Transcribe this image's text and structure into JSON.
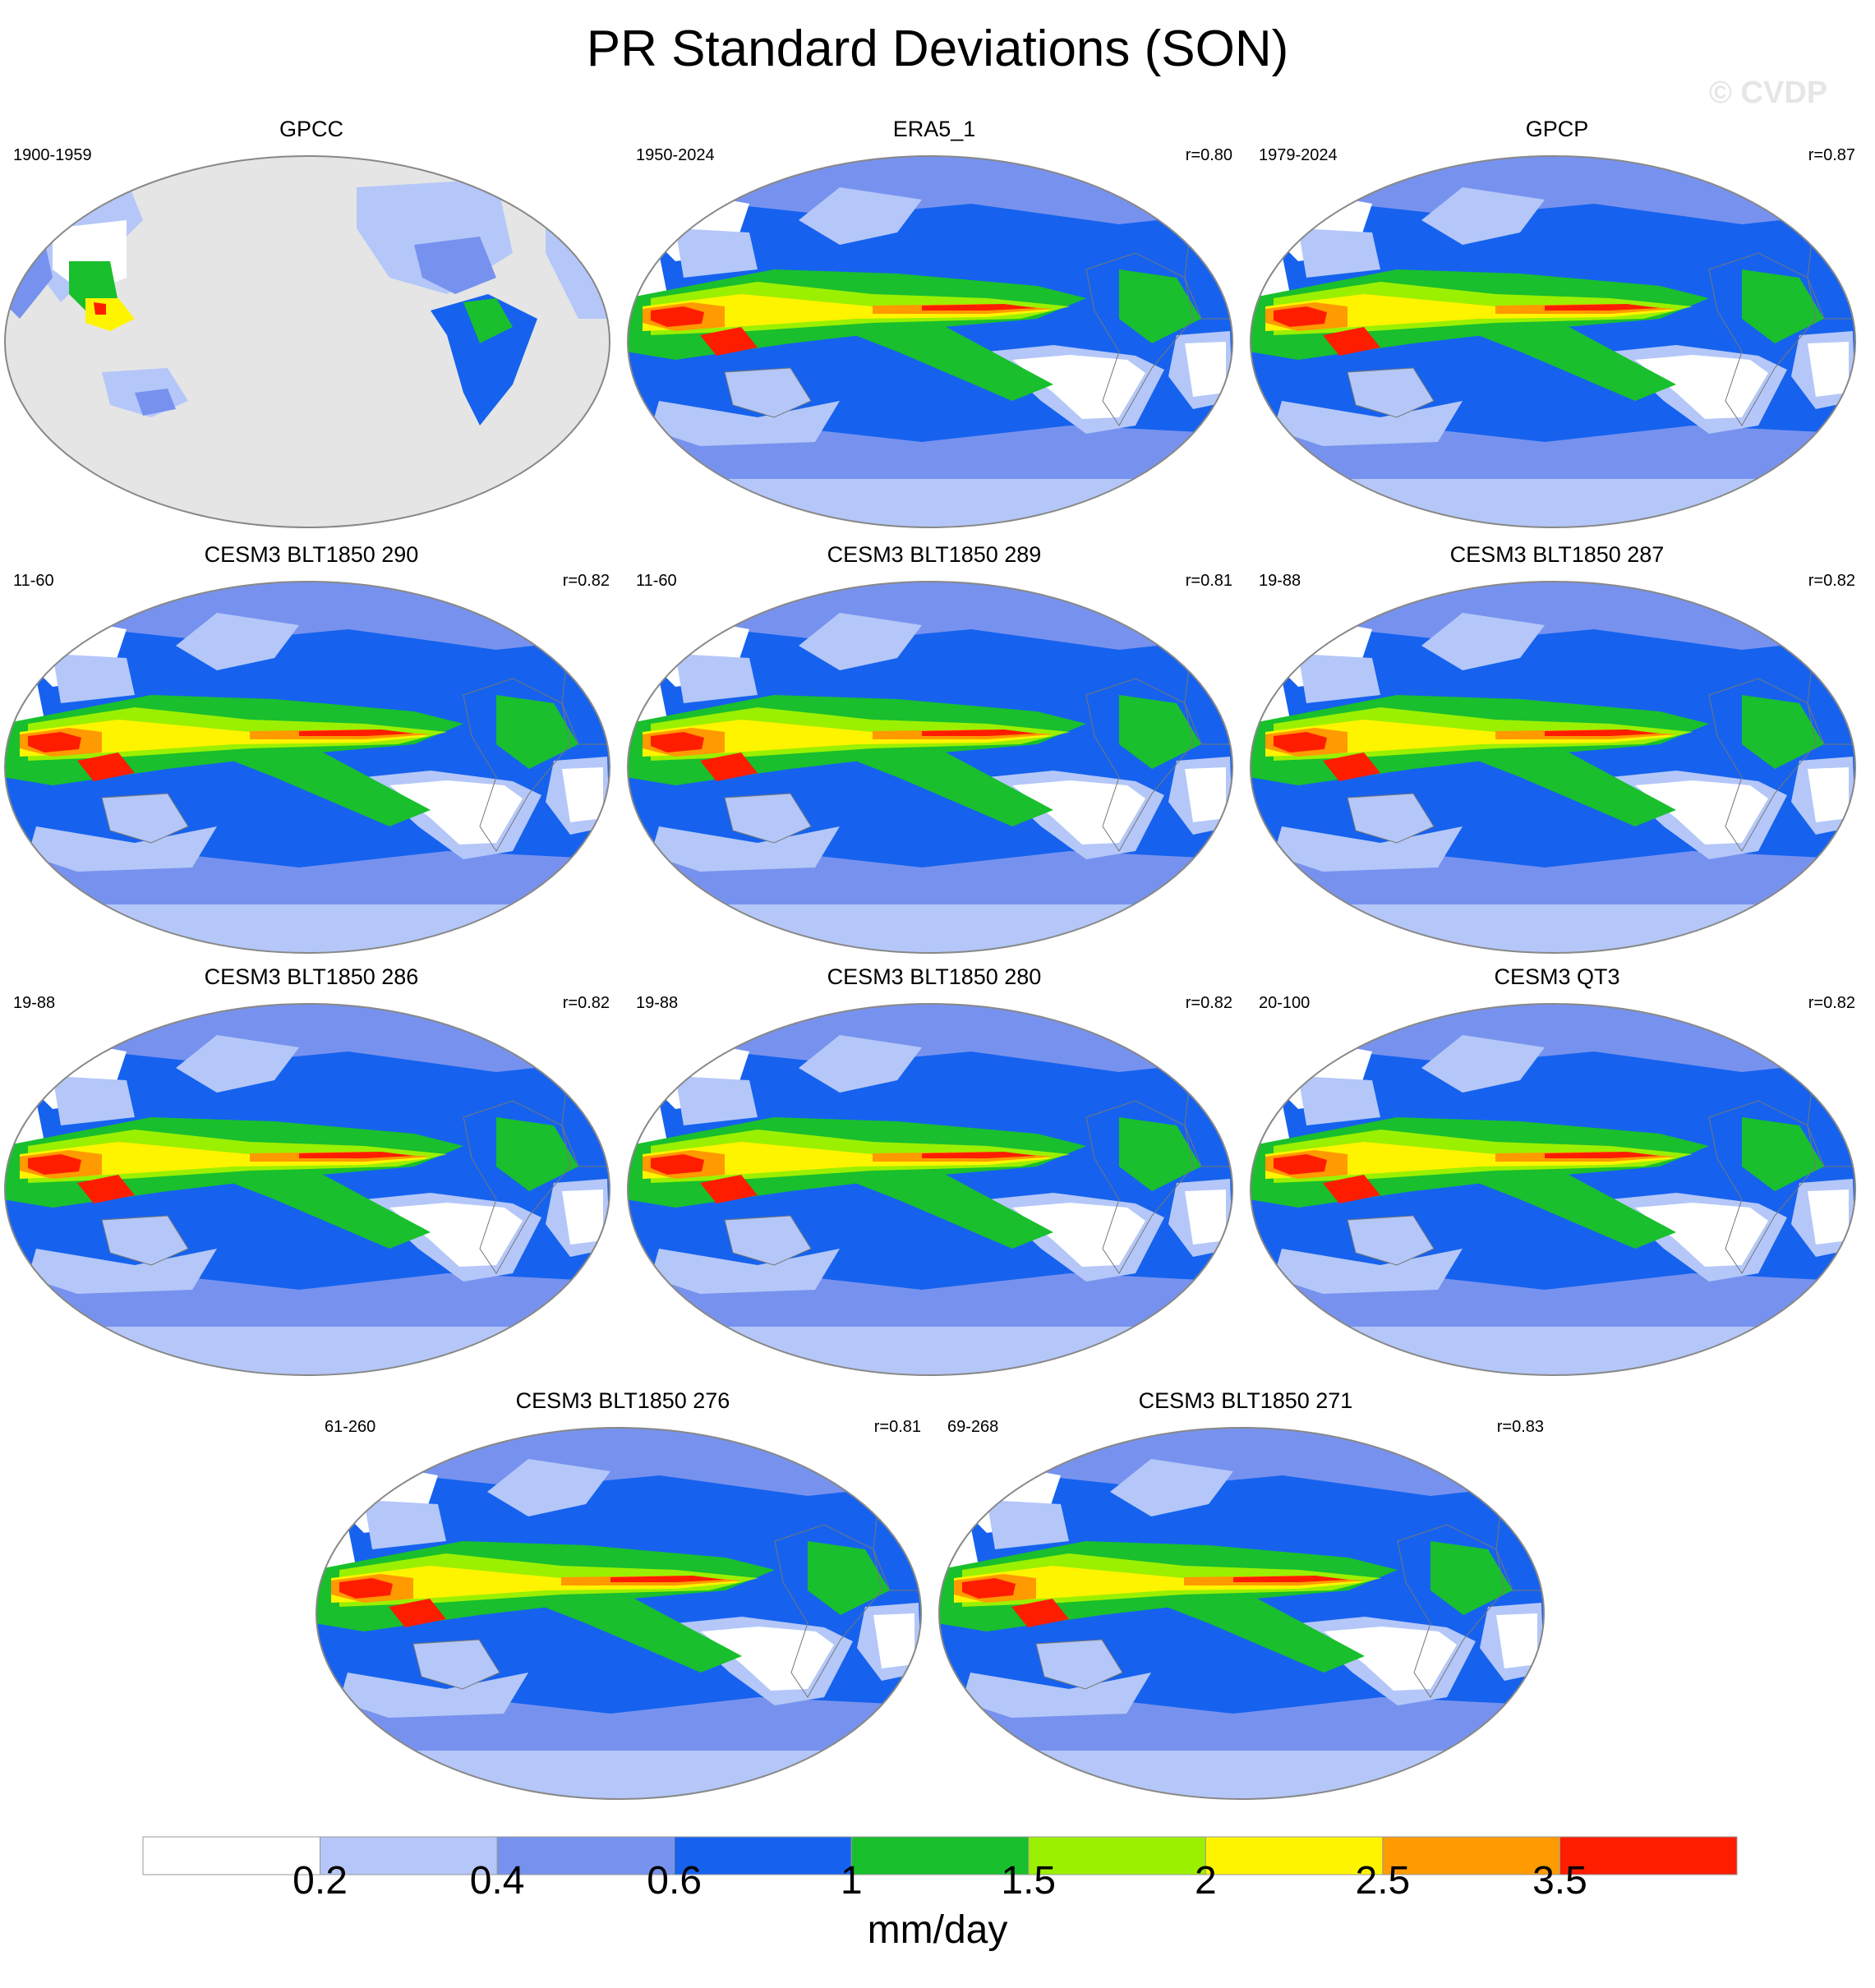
{
  "figure": {
    "title": "PR Standard Deviations (SON)",
    "watermark": "© CVDP"
  },
  "panels": [
    {
      "title": "GPCC",
      "years": "1900-1959",
      "corr": "",
      "style": "obs-land"
    },
    {
      "title": "ERA5_1",
      "years": "1950-2024",
      "corr": "r=0.80",
      "style": "obs"
    },
    {
      "title": "GPCP",
      "years": "1979-2024",
      "corr": "r=0.87",
      "style": "obs"
    },
    {
      "title": "CESM3 BLT1850 290",
      "years": "11-60",
      "corr": "r=0.82",
      "style": "model"
    },
    {
      "title": "CESM3 BLT1850 289",
      "years": "11-60",
      "corr": "r=0.81",
      "style": "model"
    },
    {
      "title": "CESM3 BLT1850 287",
      "years": "19-88",
      "corr": "r=0.82",
      "style": "model"
    },
    {
      "title": "CESM3 BLT1850 286",
      "years": "19-88",
      "corr": "r=0.82",
      "style": "model"
    },
    {
      "title": "CESM3 BLT1850 280",
      "years": "19-88",
      "corr": "r=0.82",
      "style": "model"
    },
    {
      "title": "CESM3 QT3",
      "years": "20-100",
      "corr": "r=0.82",
      "style": "model"
    },
    {
      "title": "CESM3 BLT1850 276",
      "years": "61-260",
      "corr": "r=0.81",
      "style": "model"
    },
    {
      "title": "CESM3 BLT1850 271",
      "years": "69-268",
      "corr": "r=0.83",
      "style": "model"
    }
  ],
  "colorbar": {
    "units": "mm/day",
    "tick_labels": [
      "0.2",
      "0.4",
      "0.6",
      "1",
      "1.5",
      "2",
      "2.5",
      "3.5"
    ],
    "colors": [
      "#ffffff",
      "#b4c7f8",
      "#7792ee",
      "#1662ee",
      "#19bf2d",
      "#9bf000",
      "#fff400",
      "#ff9a00",
      "#ff1d00"
    ],
    "missing_color": "#e5e5e5"
  }
}
